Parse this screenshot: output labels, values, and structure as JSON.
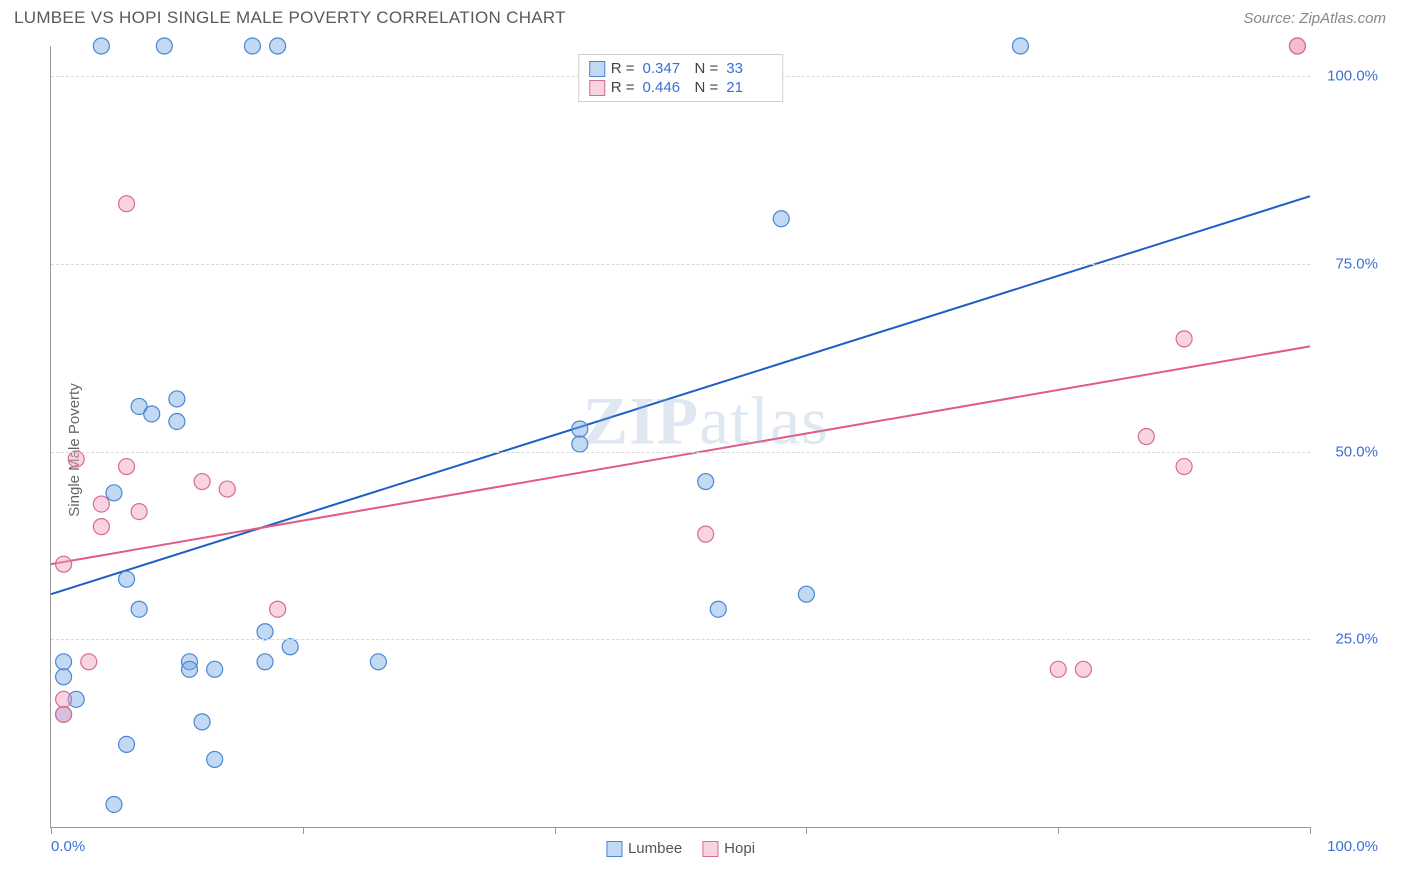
{
  "header": {
    "title": "LUMBEE VS HOPI SINGLE MALE POVERTY CORRELATION CHART",
    "source": "Source: ZipAtlas.com"
  },
  "chart": {
    "type": "scatter",
    "yaxis_label": "Single Male Poverty",
    "watermark": "ZIPatlas",
    "xlim": [
      0,
      100
    ],
    "ylim": [
      0,
      104
    ],
    "xtick_positions": [
      0,
      20,
      40,
      60,
      80,
      100
    ],
    "xtick_labels": {
      "min": "0.0%",
      "max": "100.0%"
    },
    "ytick_positions": [
      25,
      50,
      75,
      100
    ],
    "ytick_labels": [
      "25.0%",
      "50.0%",
      "75.0%",
      "100.0%"
    ],
    "grid_color": "#d8d8d8",
    "axis_color": "#999999",
    "tick_label_color": "#3a6fd8",
    "background_color": "#ffffff",
    "marker_radius": 8,
    "marker_stroke_width": 1.2,
    "line_width": 2,
    "series": [
      {
        "name": "Lumbee",
        "fill_color": "rgba(120,170,230,0.45)",
        "stroke_color": "#4a86d0",
        "line_color": "#1f5fc4",
        "R": "0.347",
        "N": "33",
        "regression": {
          "x1": 0,
          "y1": 31,
          "x2": 100,
          "y2": 84
        },
        "points": [
          [
            1,
            22
          ],
          [
            1,
            20
          ],
          [
            2,
            17
          ],
          [
            1,
            15
          ],
          [
            4,
            104
          ],
          [
            9,
            104
          ],
          [
            16,
            104
          ],
          [
            18,
            104
          ],
          [
            6,
            33
          ],
          [
            5,
            44.5
          ],
          [
            6,
            11
          ],
          [
            7,
            29
          ],
          [
            7,
            56
          ],
          [
            8,
            55
          ],
          [
            10,
            57
          ],
          [
            10,
            54
          ],
          [
            11,
            22
          ],
          [
            11,
            21
          ],
          [
            13,
            21
          ],
          [
            12,
            14
          ],
          [
            13,
            9
          ],
          [
            17,
            22
          ],
          [
            17,
            26
          ],
          [
            19,
            24
          ],
          [
            26,
            22
          ],
          [
            42,
            51
          ],
          [
            42,
            53
          ],
          [
            52,
            46
          ],
          [
            53,
            29
          ],
          [
            58,
            81
          ],
          [
            60,
            31
          ],
          [
            77,
            104
          ],
          [
            5,
            3
          ]
        ]
      },
      {
        "name": "Hopi",
        "fill_color": "rgba(240,160,190,0.45)",
        "stroke_color": "#d86b92",
        "line_color": "#e15b84",
        "R": "0.446",
        "N": "21",
        "regression": {
          "x1": 0,
          "y1": 35,
          "x2": 100,
          "y2": 64
        },
        "points": [
          [
            1,
            35
          ],
          [
            2,
            49
          ],
          [
            3,
            22
          ],
          [
            4,
            43
          ],
          [
            4,
            40
          ],
          [
            6,
            48
          ],
          [
            6,
            83
          ],
          [
            7,
            42
          ],
          [
            12,
            46
          ],
          [
            14,
            45
          ],
          [
            18,
            29
          ],
          [
            1,
            15
          ],
          [
            1,
            17
          ],
          [
            80,
            21
          ],
          [
            82,
            21
          ],
          [
            52,
            39
          ],
          [
            87,
            52
          ],
          [
            90,
            65
          ],
          [
            90,
            48
          ],
          [
            99,
            104
          ],
          [
            99,
            104
          ]
        ]
      }
    ]
  }
}
